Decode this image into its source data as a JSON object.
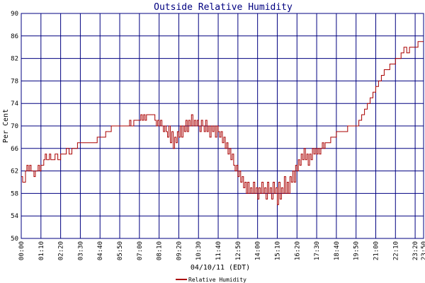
{
  "chart_data": {
    "type": "line",
    "title": "Outside Relative Humidity",
    "xlabel": "04/10/11 (EDT)",
    "ylabel": "Per Cent",
    "ylim": [
      50,
      90
    ],
    "yticks": [
      50,
      54,
      58,
      62,
      66,
      70,
      74,
      78,
      82,
      86,
      90
    ],
    "xticks": [
      "00:00",
      "01:10",
      "02:20",
      "03:30",
      "04:40",
      "05:50",
      "07:00",
      "08:10",
      "09:20",
      "10:30",
      "11:40",
      "12:50",
      "14:00",
      "15:10",
      "16:20",
      "17:30",
      "18:40",
      "19:50",
      "21:00",
      "22:10",
      "23:20",
      "23:50"
    ],
    "x_unit": "time of day (HH:MM)",
    "grid": true,
    "legend_position": "bottom-center",
    "colors": {
      "background": "#ffffff",
      "grid": "#000080",
      "series": "#aa0000",
      "title": "#000080"
    },
    "series": [
      {
        "name": "Relative Humidity",
        "points": [
          [
            "00:00",
            61
          ],
          [
            "00:05",
            60
          ],
          [
            "00:10",
            60
          ],
          [
            "00:15",
            62
          ],
          [
            "00:20",
            63
          ],
          [
            "00:25",
            62
          ],
          [
            "00:30",
            63
          ],
          [
            "00:35",
            62
          ],
          [
            "00:40",
            62
          ],
          [
            "00:45",
            61
          ],
          [
            "00:50",
            62
          ],
          [
            "00:55",
            62
          ],
          [
            "01:00",
            63
          ],
          [
            "01:05",
            62
          ],
          [
            "01:10",
            63
          ],
          [
            "01:15",
            63
          ],
          [
            "01:20",
            64
          ],
          [
            "01:25",
            65
          ],
          [
            "01:30",
            64
          ],
          [
            "01:35",
            64
          ],
          [
            "01:40",
            65
          ],
          [
            "01:45",
            64
          ],
          [
            "01:50",
            64
          ],
          [
            "01:55",
            64
          ],
          [
            "02:00",
            65
          ],
          [
            "02:10",
            64
          ],
          [
            "02:20",
            65
          ],
          [
            "02:30",
            65
          ],
          [
            "02:40",
            66
          ],
          [
            "02:50",
            65
          ],
          [
            "03:00",
            66
          ],
          [
            "03:10",
            66
          ],
          [
            "03:20",
            67
          ],
          [
            "03:30",
            67
          ],
          [
            "03:45",
            67
          ],
          [
            "04:00",
            67
          ],
          [
            "04:15",
            67
          ],
          [
            "04:30",
            68
          ],
          [
            "04:40",
            68
          ],
          [
            "04:50",
            68
          ],
          [
            "05:00",
            69
          ],
          [
            "05:10",
            69
          ],
          [
            "05:20",
            70
          ],
          [
            "05:35",
            70
          ],
          [
            "05:50",
            70
          ],
          [
            "06:05",
            70
          ],
          [
            "06:20",
            70
          ],
          [
            "06:25",
            71
          ],
          [
            "06:30",
            70
          ],
          [
            "06:40",
            71
          ],
          [
            "06:50",
            71
          ],
          [
            "07:00",
            71
          ],
          [
            "07:05",
            72
          ],
          [
            "07:10",
            71
          ],
          [
            "07:15",
            72
          ],
          [
            "07:20",
            71
          ],
          [
            "07:25",
            72
          ],
          [
            "07:30",
            72
          ],
          [
            "07:40",
            72
          ],
          [
            "07:50",
            72
          ],
          [
            "07:55",
            71
          ],
          [
            "08:00",
            70
          ],
          [
            "08:05",
            71
          ],
          [
            "08:10",
            70
          ],
          [
            "08:15",
            71
          ],
          [
            "08:20",
            70
          ],
          [
            "08:25",
            69
          ],
          [
            "08:30",
            70
          ],
          [
            "08:35",
            69
          ],
          [
            "08:40",
            68
          ],
          [
            "08:45",
            70
          ],
          [
            "08:50",
            67
          ],
          [
            "08:55",
            69
          ],
          [
            "09:00",
            66
          ],
          [
            "09:05",
            68
          ],
          [
            "09:10",
            67
          ],
          [
            "09:15",
            69
          ],
          [
            "09:20",
            68
          ],
          [
            "09:25",
            70
          ],
          [
            "09:30",
            68
          ],
          [
            "09:35",
            70
          ],
          [
            "09:40",
            69
          ],
          [
            "09:45",
            71
          ],
          [
            "09:50",
            69
          ],
          [
            "09:55",
            71
          ],
          [
            "10:00",
            70
          ],
          [
            "10:05",
            72
          ],
          [
            "10:10",
            70
          ],
          [
            "10:15",
            71
          ],
          [
            "10:20",
            70
          ],
          [
            "10:25",
            71
          ],
          [
            "10:30",
            70
          ],
          [
            "10:35",
            69
          ],
          [
            "10:40",
            71
          ],
          [
            "10:45",
            70
          ],
          [
            "10:50",
            69
          ],
          [
            "10:55",
            71
          ],
          [
            "11:00",
            69
          ],
          [
            "11:05",
            70
          ],
          [
            "11:10",
            68
          ],
          [
            "11:15",
            70
          ],
          [
            "11:20",
            69
          ],
          [
            "11:25",
            70
          ],
          [
            "11:30",
            68
          ],
          [
            "11:35",
            70
          ],
          [
            "11:40",
            69
          ],
          [
            "11:45",
            68
          ],
          [
            "11:50",
            69
          ],
          [
            "11:55",
            67
          ],
          [
            "12:00",
            68
          ],
          [
            "12:05",
            66
          ],
          [
            "12:10",
            67
          ],
          [
            "12:15",
            65
          ],
          [
            "12:20",
            66
          ],
          [
            "12:25",
            64
          ],
          [
            "12:30",
            65
          ],
          [
            "12:35",
            63
          ],
          [
            "12:40",
            62
          ],
          [
            "12:45",
            63
          ],
          [
            "12:50",
            61
          ],
          [
            "12:55",
            62
          ],
          [
            "13:00",
            60
          ],
          [
            "13:05",
            61
          ],
          [
            "13:10",
            59
          ],
          [
            "13:15",
            60
          ],
          [
            "13:20",
            58
          ],
          [
            "13:25",
            60
          ],
          [
            "13:30",
            58
          ],
          [
            "13:35",
            59
          ],
          [
            "13:40",
            58
          ],
          [
            "13:45",
            60
          ],
          [
            "13:50",
            58
          ],
          [
            "13:55",
            59
          ],
          [
            "14:00",
            57
          ],
          [
            "14:05",
            59
          ],
          [
            "14:10",
            58
          ],
          [
            "14:15",
            60
          ],
          [
            "14:20",
            58
          ],
          [
            "14:25",
            59
          ],
          [
            "14:30",
            57
          ],
          [
            "14:35",
            60
          ],
          [
            "14:40",
            58
          ],
          [
            "14:45",
            59
          ],
          [
            "14:50",
            57
          ],
          [
            "14:55",
            60
          ],
          [
            "15:00",
            58
          ],
          [
            "15:05",
            59
          ],
          [
            "15:10",
            56
          ],
          [
            "15:15",
            60
          ],
          [
            "15:20",
            57
          ],
          [
            "15:25",
            59
          ],
          [
            "15:30",
            58
          ],
          [
            "15:35",
            61
          ],
          [
            "15:40",
            58
          ],
          [
            "15:45",
            60
          ],
          [
            "15:50",
            58
          ],
          [
            "15:55",
            61
          ],
          [
            "16:00",
            60
          ],
          [
            "16:05",
            62
          ],
          [
            "16:10",
            60
          ],
          [
            "16:15",
            63
          ],
          [
            "16:20",
            62
          ],
          [
            "16:25",
            64
          ],
          [
            "16:30",
            63
          ],
          [
            "16:35",
            65
          ],
          [
            "16:40",
            64
          ],
          [
            "16:45",
            66
          ],
          [
            "16:50",
            64
          ],
          [
            "16:55",
            65
          ],
          [
            "17:00",
            63
          ],
          [
            "17:05",
            65
          ],
          [
            "17:10",
            64
          ],
          [
            "17:15",
            66
          ],
          [
            "17:20",
            65
          ],
          [
            "17:25",
            66
          ],
          [
            "17:30",
            65
          ],
          [
            "17:35",
            66
          ],
          [
            "17:40",
            65
          ],
          [
            "17:45",
            66
          ],
          [
            "17:50",
            67
          ],
          [
            "17:55",
            66
          ],
          [
            "18:00",
            67
          ],
          [
            "18:10",
            67
          ],
          [
            "18:20",
            68
          ],
          [
            "18:30",
            68
          ],
          [
            "18:40",
            69
          ],
          [
            "18:50",
            69
          ],
          [
            "19:00",
            69
          ],
          [
            "19:10",
            69
          ],
          [
            "19:20",
            70
          ],
          [
            "19:30",
            70
          ],
          [
            "19:40",
            70
          ],
          [
            "19:50",
            70
          ],
          [
            "20:00",
            71
          ],
          [
            "20:10",
            72
          ],
          [
            "20:20",
            73
          ],
          [
            "20:30",
            74
          ],
          [
            "20:40",
            75
          ],
          [
            "20:50",
            76
          ],
          [
            "21:00",
            77
          ],
          [
            "21:10",
            78
          ],
          [
            "21:20",
            79
          ],
          [
            "21:30",
            80
          ],
          [
            "21:40",
            80
          ],
          [
            "21:50",
            81
          ],
          [
            "22:00",
            81
          ],
          [
            "22:10",
            82
          ],
          [
            "22:20",
            82
          ],
          [
            "22:30",
            83
          ],
          [
            "22:40",
            84
          ],
          [
            "22:50",
            83
          ],
          [
            "23:00",
            84
          ],
          [
            "23:10",
            84
          ],
          [
            "23:20",
            84
          ],
          [
            "23:30",
            85
          ],
          [
            "23:40",
            85
          ],
          [
            "23:50",
            85
          ]
        ]
      }
    ]
  }
}
